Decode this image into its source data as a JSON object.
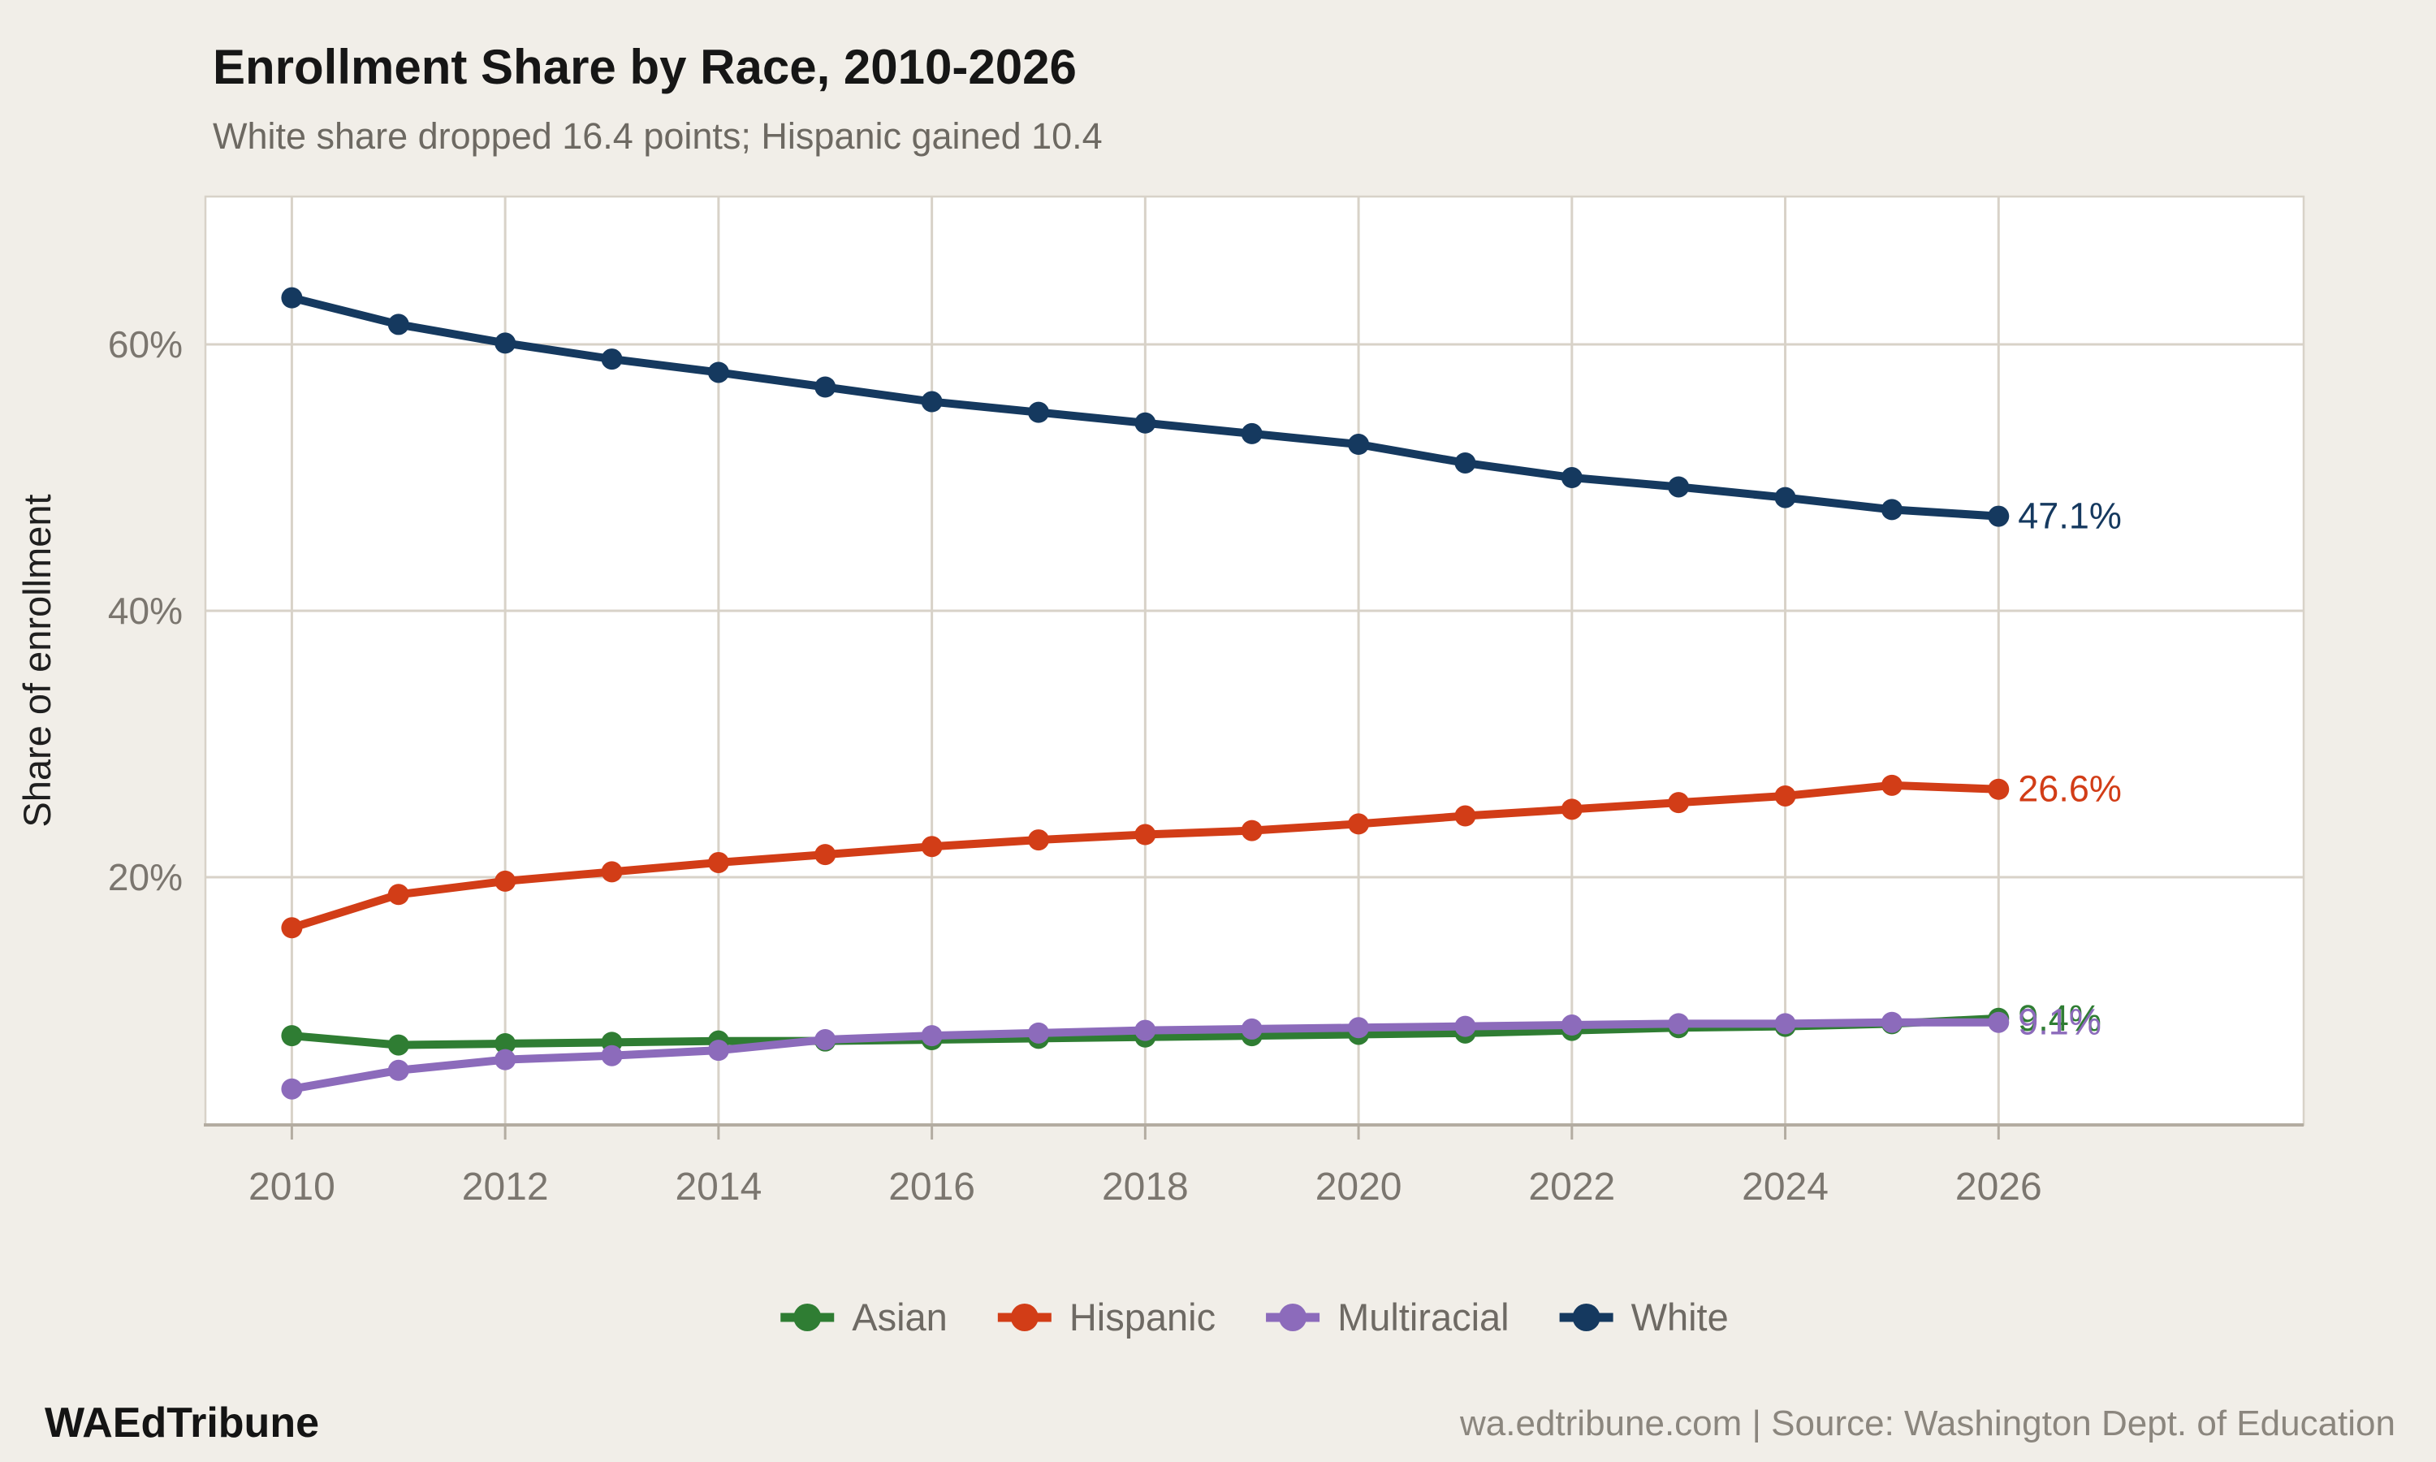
{
  "title": "Enrollment Share by Race, 2010-2026",
  "subtitle": "White share dropped 16.4 points; Hispanic gained 10.4",
  "ylabel": "Share of enrollment",
  "footer": {
    "brand": "WAEdTribune",
    "source": "wa.edtribune.com | Source: Washington Dept. of Education"
  },
  "colors": {
    "background": "#f1eee8",
    "panel": "#ffffff",
    "grid": "#d8d2c8",
    "axis": "#b3aca1",
    "tick_text": "#7b766f",
    "ylabel_text": "#1f1f1f",
    "title_text": "#161616",
    "subtitle_text": "#6d6962",
    "footer_brand": "#141414",
    "footer_source": "#8b867e",
    "legend_text": "#6e6a64"
  },
  "chart_data": {
    "type": "line",
    "title": "Enrollment Share by Race, 2010-2026",
    "subtitle": "White share dropped 16.4 points; Hispanic gained 10.4",
    "xlabel": "",
    "ylabel": "Share of enrollment",
    "x": [
      2010,
      2011,
      2012,
      2013,
      2014,
      2015,
      2016,
      2017,
      2018,
      2019,
      2020,
      2021,
      2022,
      2023,
      2024,
      2025,
      2026
    ],
    "series": [
      {
        "name": "Asian",
        "color": "#2f7d33",
        "values": [
          8.1,
          7.4,
          7.5,
          7.6,
          7.7,
          7.7,
          7.8,
          7.9,
          8.0,
          8.1,
          8.2,
          8.3,
          8.5,
          8.7,
          8.8,
          9.0,
          9.4
        ],
        "end_label": "9.4%"
      },
      {
        "name": "Hispanic",
        "color": "#d23d17",
        "values": [
          16.2,
          18.7,
          19.7,
          20.4,
          21.1,
          21.7,
          22.3,
          22.8,
          23.2,
          23.5,
          24.0,
          24.6,
          25.1,
          25.6,
          26.1,
          26.9,
          26.6
        ],
        "end_label": "26.6%"
      },
      {
        "name": "Multiracial",
        "color": "#8c6bbb",
        "values": [
          4.1,
          5.5,
          6.3,
          6.6,
          7.0,
          7.8,
          8.1,
          8.3,
          8.5,
          8.6,
          8.7,
          8.8,
          8.9,
          9.0,
          9.0,
          9.1,
          9.1
        ],
        "end_label": "9.1%"
      },
      {
        "name": "White",
        "color": "#15395f",
        "values": [
          63.5,
          61.5,
          60.1,
          58.9,
          57.9,
          56.8,
          55.7,
          54.9,
          54.1,
          53.3,
          52.5,
          51.1,
          50.0,
          49.3,
          48.5,
          47.6,
          47.1
        ],
        "end_label": "47.1%"
      }
    ],
    "yticks": [
      20,
      40,
      60
    ],
    "xticks": [
      2010,
      2012,
      2014,
      2016,
      2018,
      2020,
      2022,
      2024,
      2026
    ],
    "xlim": [
      2009.19,
      2028.86
    ],
    "ylim": [
      1.4,
      71.1
    ],
    "grid": true,
    "legend_position": "bottom"
  }
}
